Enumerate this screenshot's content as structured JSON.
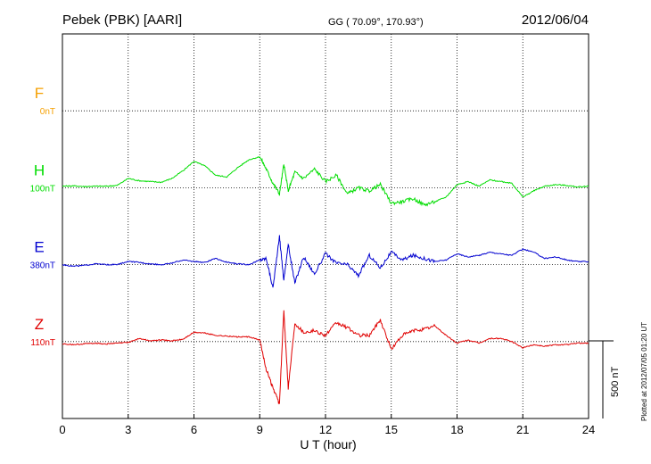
{
  "header": {
    "station": "Pebek (PBK)  [AARI]",
    "coords": "GG ( 70.09°, 170.93°)",
    "date": "2012/06/04"
  },
  "side_note": "Plotted at 2012/07/05 01:20 UT",
  "scale_bar": {
    "label": "500 nT",
    "value_nT": 500
  },
  "colors": {
    "F": "#f5a000",
    "H": "#00dd00",
    "E": "#0000d0",
    "Z": "#e00000",
    "grid": "#000000"
  },
  "chart_data": {
    "type": "line",
    "xlabel": "U T (hour)",
    "xlim": [
      0,
      24
    ],
    "xticks": [
      "0",
      "3",
      "6",
      "9",
      "12",
      "15",
      "18",
      "21",
      "24"
    ],
    "grid": true,
    "series": [
      {
        "name": "F",
        "offset_label": "0nT",
        "baseline_row": 1,
        "x": [],
        "values": []
      },
      {
        "name": "H",
        "offset_label": "100nT",
        "baseline_row": 2,
        "x": [
          0,
          0.5,
          1,
          1.5,
          2,
          2.5,
          3,
          3.5,
          4,
          4.5,
          5,
          5.5,
          6,
          6.5,
          7,
          7.5,
          8,
          8.5,
          9,
          9.3,
          9.6,
          9.9,
          10.1,
          10.3,
          10.6,
          11,
          11.5,
          12,
          12.5,
          13,
          13.5,
          14,
          14.5,
          15,
          15.5,
          16,
          16.5,
          17,
          17.5,
          18,
          18.5,
          19,
          19.5,
          20,
          20.5,
          21,
          21.5,
          22,
          22.5,
          23,
          23.5,
          24
        ],
        "values": [
          10,
          12,
          8,
          10,
          10,
          15,
          60,
          45,
          40,
          35,
          60,
          110,
          170,
          140,
          80,
          70,
          130,
          180,
          200,
          120,
          30,
          -40,
          150,
          -20,
          100,
          60,
          120,
          40,
          80,
          -40,
          0,
          -20,
          20,
          -100,
          -90,
          -70,
          -110,
          -90,
          -60,
          20,
          40,
          10,
          50,
          40,
          30,
          -60,
          -20,
          10,
          20,
          15,
          5,
          10
        ]
      },
      {
        "name": "E",
        "offset_label": "380nT",
        "baseline_row": 3,
        "x": [
          0,
          0.5,
          1,
          1.5,
          2,
          2.5,
          3,
          3.5,
          4,
          4.5,
          5,
          5.5,
          6,
          6.5,
          7,
          7.5,
          8,
          8.5,
          9,
          9.3,
          9.6,
          9.9,
          10.1,
          10.3,
          10.6,
          11,
          11.5,
          12,
          12.5,
          13,
          13.5,
          14,
          14.5,
          15,
          15.5,
          16,
          16.5,
          17,
          17.5,
          18,
          18.5,
          19,
          19.5,
          20,
          20.5,
          21,
          21.5,
          22,
          22.5,
          23,
          23.5,
          24
        ],
        "values": [
          0,
          -10,
          -5,
          5,
          0,
          0,
          20,
          15,
          5,
          0,
          10,
          30,
          20,
          15,
          40,
          15,
          5,
          0,
          30,
          40,
          -150,
          180,
          -100,
          130,
          -120,
          50,
          -60,
          70,
          10,
          0,
          -70,
          60,
          -20,
          80,
          30,
          60,
          40,
          20,
          30,
          70,
          50,
          60,
          80,
          70,
          60,
          100,
          80,
          40,
          50,
          30,
          20,
          20
        ]
      },
      {
        "name": "Z",
        "offset_label": "110nT",
        "baseline_row": 4,
        "x": [
          0,
          0.5,
          1,
          1.5,
          2,
          2.5,
          3,
          3.5,
          4,
          4.5,
          5,
          5.5,
          6,
          6.5,
          7,
          7.5,
          8,
          8.5,
          9,
          9.3,
          9.6,
          9.9,
          10.1,
          10.3,
          10.6,
          11,
          11.5,
          12,
          12.5,
          13,
          13.5,
          14,
          14.5,
          15,
          15.5,
          16,
          16.5,
          17,
          17.5,
          18,
          18.5,
          19,
          19.5,
          20,
          20.5,
          21,
          21.5,
          22,
          22.5,
          23,
          23.5,
          24
        ],
        "values": [
          -15,
          -20,
          -15,
          -10,
          -15,
          -10,
          -5,
          20,
          5,
          10,
          5,
          15,
          60,
          55,
          40,
          35,
          30,
          30,
          10,
          -180,
          -300,
          -400,
          200,
          -300,
          120,
          60,
          70,
          40,
          120,
          90,
          40,
          40,
          140,
          -50,
          40,
          70,
          80,
          100,
          40,
          -10,
          10,
          -10,
          20,
          20,
          0,
          -40,
          -20,
          -30,
          -20,
          -20,
          -10,
          -10
        ]
      }
    ]
  }
}
